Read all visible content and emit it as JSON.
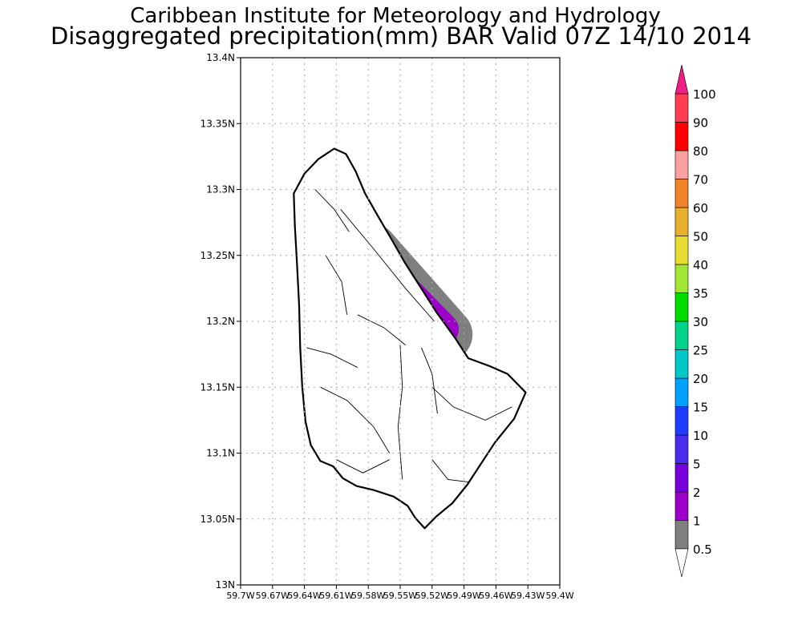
{
  "title": {
    "line1": "Caribbean Institute for Meteorology and Hydrology",
    "line2": "Disaggregated precipitation(mm) BAR Valid 07Z 14/10 2014"
  },
  "map": {
    "country": "Barbados",
    "lon_range": [
      -59.7,
      -59.4
    ],
    "lat_range": [
      13.0,
      13.4
    ],
    "lat_ticks": [
      {
        "value": 13.4,
        "label": "13.4N"
      },
      {
        "value": 13.35,
        "label": "13.35N"
      },
      {
        "value": 13.3,
        "label": "13.3N"
      },
      {
        "value": 13.25,
        "label": "13.25N"
      },
      {
        "value": 13.2,
        "label": "13.2N"
      },
      {
        "value": 13.15,
        "label": "13.15N"
      },
      {
        "value": 13.1,
        "label": "13.1N"
      },
      {
        "value": 13.05,
        "label": "13.05N"
      },
      {
        "value": 13.0,
        "label": "13N"
      }
    ],
    "lon_ticks": [
      {
        "value": -59.7,
        "label": "59.7W"
      },
      {
        "value": -59.67,
        "label": "59.67W"
      },
      {
        "value": -59.64,
        "label": "59.64W"
      },
      {
        "value": -59.61,
        "label": "59.61W"
      },
      {
        "value": -59.58,
        "label": "59.58W"
      },
      {
        "value": -59.55,
        "label": "59.55W"
      },
      {
        "value": -59.52,
        "label": "59.52W"
      },
      {
        "value": -59.49,
        "label": "59.49W"
      },
      {
        "value": -59.46,
        "label": "59.46W"
      },
      {
        "value": -59.43,
        "label": "59.43W"
      },
      {
        "value": -59.4,
        "label": "59.4W"
      }
    ],
    "island_outline": [
      [
        -59.627,
        13.323
      ],
      [
        -59.612,
        13.331
      ],
      [
        -59.601,
        13.327
      ],
      [
        -59.592,
        13.314
      ],
      [
        -59.583,
        13.297
      ],
      [
        -59.571,
        13.28
      ],
      [
        -59.558,
        13.262
      ],
      [
        -59.546,
        13.245
      ],
      [
        -59.531,
        13.226
      ],
      [
        -59.516,
        13.207
      ],
      [
        -59.499,
        13.188
      ],
      [
        -59.486,
        13.172
      ],
      [
        -59.466,
        13.166
      ],
      [
        -59.449,
        13.16
      ],
      [
        -59.432,
        13.146
      ],
      [
        -59.443,
        13.126
      ],
      [
        -59.461,
        13.108
      ],
      [
        -59.474,
        13.092
      ],
      [
        -59.487,
        13.076
      ],
      [
        -59.501,
        13.062
      ],
      [
        -59.516,
        13.052
      ],
      [
        -59.527,
        13.043
      ],
      [
        -59.536,
        13.051
      ],
      [
        -59.543,
        13.06
      ],
      [
        -59.556,
        13.067
      ],
      [
        -59.575,
        13.072
      ],
      [
        -59.591,
        13.075
      ],
      [
        -59.604,
        13.081
      ],
      [
        -59.613,
        13.09
      ],
      [
        -59.625,
        13.094
      ],
      [
        -59.634,
        13.106
      ],
      [
        -59.639,
        13.124
      ],
      [
        -59.642,
        13.15
      ],
      [
        -59.644,
        13.18
      ],
      [
        -59.645,
        13.212
      ],
      [
        -59.647,
        13.244
      ],
      [
        -59.649,
        13.272
      ],
      [
        -59.65,
        13.297
      ],
      [
        -59.64,
        13.312
      ]
    ],
    "rain_area": {
      "band_low": {
        "label": "0.5-1",
        "color": "#7f7f7f",
        "center_start": [
          -59.577,
          13.254
        ],
        "center_end": [
          -59.507,
          13.19
        ],
        "half_width_deg": 0.025
      },
      "band_mid": {
        "label": "1-2",
        "color": "#9c00c8",
        "center_start": [
          -59.573,
          13.246
        ],
        "center_end": [
          -59.51,
          13.194
        ],
        "half_width_deg": 0.015
      }
    }
  },
  "legend": {
    "levels": [
      "0.5",
      "1",
      "2",
      "5",
      "10",
      "15",
      "20",
      "25",
      "30",
      "35",
      "40",
      "50",
      "60",
      "70",
      "80",
      "90",
      "100"
    ],
    "colors": [
      "#7f7f7f",
      "#9c00c8",
      "#7800dc",
      "#4b2df0",
      "#1e3cff",
      "#00a0ff",
      "#00c8c8",
      "#00d28c",
      "#00dc00",
      "#a0e632",
      "#e6dc32",
      "#e6af2d",
      "#f08228",
      "#faa0a0",
      "#ff0000",
      "#ff3c50"
    ],
    "under_color": "#ffffff",
    "over_color": "#f01e82"
  }
}
